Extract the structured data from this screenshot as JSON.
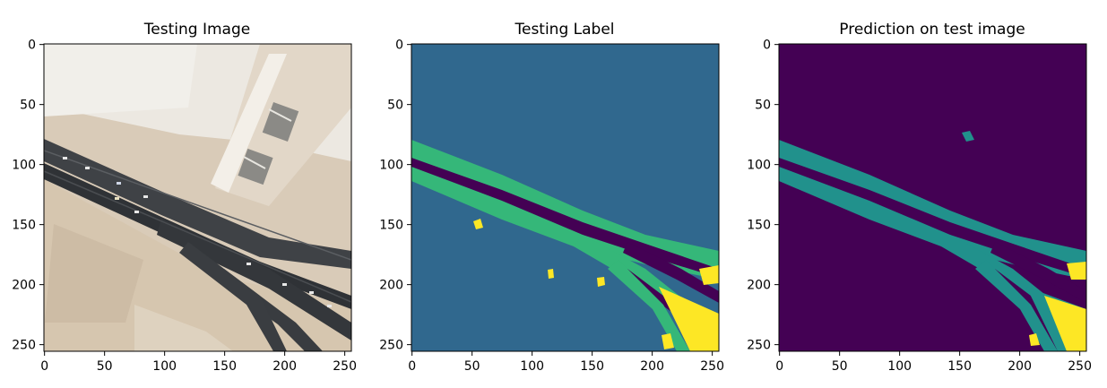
{
  "figure": {
    "panels": [
      {
        "id": "testing-image",
        "title": "Testing Image",
        "type": "photo"
      },
      {
        "id": "testing-label",
        "title": "Testing Label",
        "type": "label-map",
        "colors": {
          "background": "#30688e",
          "road": "#35b779",
          "dark": "#440154",
          "marker": "#fde725"
        }
      },
      {
        "id": "prediction",
        "title": "Prediction on test image",
        "type": "label-map",
        "colors": {
          "background": "#440154",
          "road": "#21918c",
          "dark": "#440154",
          "marker": "#fde725"
        }
      }
    ],
    "x_ticks": [
      "0",
      "50",
      "100",
      "150",
      "200",
      "250"
    ],
    "y_ticks": [
      "0",
      "50",
      "100",
      "150",
      "200",
      "250"
    ],
    "x_tick_values": [
      0,
      50,
      100,
      150,
      200,
      250
    ],
    "y_tick_values": [
      0,
      50,
      100,
      150,
      200,
      250
    ],
    "image_size": [
      256,
      256
    ]
  }
}
